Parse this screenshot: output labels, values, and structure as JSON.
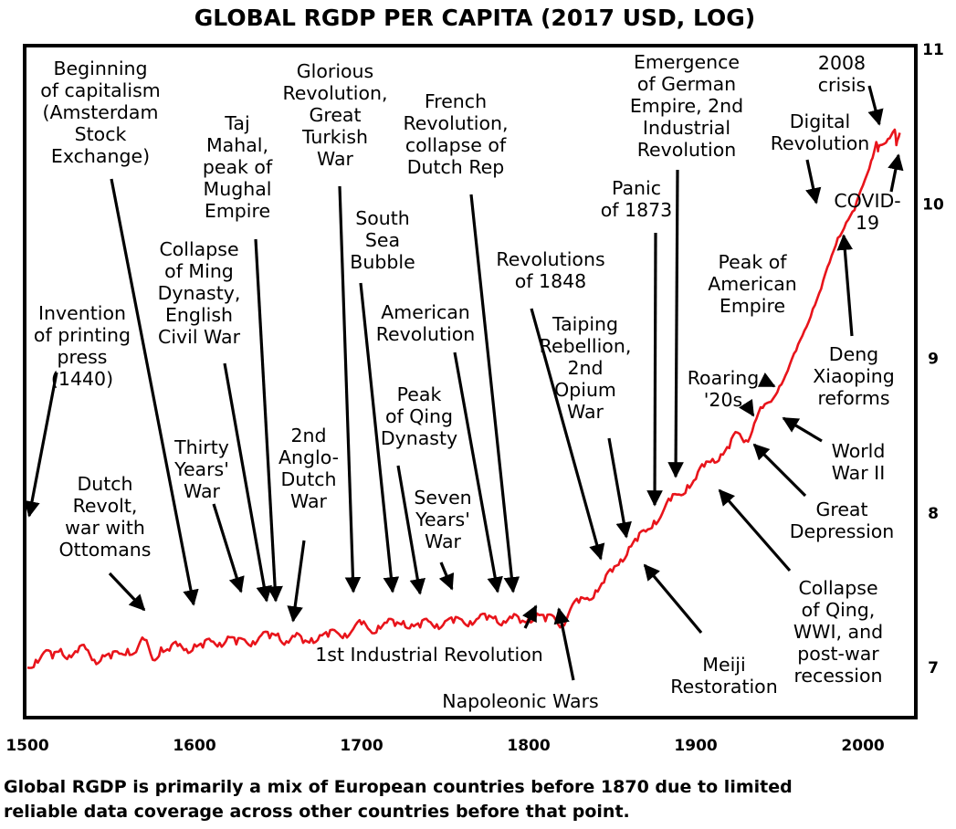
{
  "chart_data": {
    "type": "line",
    "title": "GLOBAL RGDP PER CAPITA (2017 USD, LOG)",
    "xlim": [
      1500,
      2030
    ],
    "ylim": [
      6.7,
      11.0
    ],
    "x_ticks": [
      1500,
      1600,
      1700,
      1800,
      1900,
      2000
    ],
    "y_ticks": [
      7,
      8,
      9,
      10,
      11
    ],
    "grid": false,
    "series": [
      {
        "name": "Global RGDP per capita (log)",
        "color": "#e8141b",
        "x": [
          1500,
          1505,
          1510,
          1515,
          1520,
          1525,
          1530,
          1535,
          1540,
          1545,
          1550,
          1555,
          1560,
          1565,
          1570,
          1575,
          1580,
          1585,
          1590,
          1595,
          1600,
          1605,
          1610,
          1615,
          1620,
          1625,
          1630,
          1635,
          1640,
          1645,
          1650,
          1655,
          1660,
          1665,
          1670,
          1675,
          1680,
          1685,
          1690,
          1695,
          1700,
          1705,
          1710,
          1715,
          1720,
          1725,
          1730,
          1735,
          1740,
          1745,
          1750,
          1755,
          1760,
          1765,
          1770,
          1775,
          1780,
          1785,
          1790,
          1795,
          1800,
          1805,
          1810,
          1815,
          1820,
          1825,
          1830,
          1835,
          1840,
          1845,
          1850,
          1855,
          1860,
          1865,
          1870,
          1875,
          1880,
          1885,
          1890,
          1895,
          1900,
          1905,
          1910,
          1915,
          1920,
          1925,
          1930,
          1935,
          1940,
          1945,
          1950,
          1955,
          1960,
          1965,
          1970,
          1975,
          1980,
          1985,
          1990,
          1995,
          2000,
          2005,
          2008,
          2009,
          2010,
          2015,
          2019,
          2020,
          2022
        ],
        "values": [
          7.0,
          7.05,
          7.1,
          7.06,
          7.12,
          7.08,
          7.1,
          7.12,
          7.05,
          7.08,
          7.06,
          7.09,
          7.12,
          7.1,
          7.18,
          7.05,
          7.13,
          7.11,
          7.14,
          7.12,
          7.15,
          7.13,
          7.17,
          7.16,
          7.2,
          7.15,
          7.18,
          7.17,
          7.21,
          7.19,
          7.22,
          7.17,
          7.2,
          7.16,
          7.19,
          7.21,
          7.2,
          7.23,
          7.22,
          7.25,
          7.28,
          7.24,
          7.27,
          7.29,
          7.27,
          7.3,
          7.28,
          7.26,
          7.3,
          7.28,
          7.3,
          7.29,
          7.31,
          7.3,
          7.32,
          7.31,
          7.33,
          7.3,
          7.32,
          7.29,
          7.32,
          7.35,
          7.3,
          7.33,
          7.28,
          7.38,
          7.42,
          7.45,
          7.5,
          7.55,
          7.62,
          7.7,
          7.78,
          7.82,
          7.88,
          7.95,
          8.0,
          8.08,
          8.12,
          8.18,
          8.22,
          8.3,
          8.35,
          8.38,
          8.42,
          8.52,
          8.47,
          8.58,
          8.68,
          8.72,
          8.82,
          8.92,
          9.05,
          9.18,
          9.32,
          9.45,
          9.62,
          9.78,
          9.88,
          9.96,
          10.12,
          10.28,
          10.4,
          10.34,
          10.38,
          10.42,
          10.48,
          10.38,
          10.46
        ]
      }
    ],
    "annotations": [
      {
        "text": "Invention of printing press (1440)",
        "lines": [
          "Invention",
          "of printing",
          "press",
          "(1440)"
        ],
        "points_to_year": 1500
      },
      {
        "text": "Beginning of capitalism (Amsterdam Stock Exchange)",
        "lines": [
          "Beginning",
          "of capitalism",
          "(Amsterdam",
          "Stock",
          "Exchange)"
        ],
        "points_to_year": 1602
      },
      {
        "text": "Dutch Revolt, war with Ottomans",
        "lines": [
          "Dutch",
          "Revolt,",
          "war with",
          "Ottomans"
        ],
        "points_to_year": 1568
      },
      {
        "text": "Collapse of Ming Dynasty, English Civil War",
        "lines": [
          "Collapse",
          "of Ming",
          "Dynasty,",
          "English",
          "Civil War"
        ],
        "points_to_year": 1644
      },
      {
        "text": "Taj Mahal, peak of Mughal Empire",
        "lines": [
          "Taj",
          "Mahal,",
          "peak of",
          "Mughal",
          "Empire"
        ],
        "points_to_year": 1648
      },
      {
        "text": "Thirty Years' War",
        "lines": [
          "Thirty",
          "Years'",
          "War"
        ],
        "points_to_year": 1630
      },
      {
        "text": "2nd Anglo-Dutch War",
        "lines": [
          "2nd",
          "Anglo-",
          "Dutch",
          "War"
        ],
        "points_to_year": 1665
      },
      {
        "text": "Glorious Revolution, Great Turkish War",
        "lines": [
          "Glorious",
          "Revolution,",
          "Great",
          "Turkish",
          "War"
        ],
        "points_to_year": 1688
      },
      {
        "text": "South Sea Bubble",
        "lines": [
          "South",
          "Sea",
          "Bubble"
        ],
        "points_to_year": 1720
      },
      {
        "text": "French Revolution, collapse of Dutch Rep",
        "lines": [
          "French",
          "Revolution,",
          "collapse of",
          "Dutch Rep"
        ],
        "points_to_year": 1795
      },
      {
        "text": "American Revolution",
        "lines": [
          "American",
          "Revolution"
        ],
        "points_to_year": 1776
      },
      {
        "text": "Peak of Qing Dynasty",
        "lines": [
          "Peak",
          "of Qing",
          "Dynasty"
        ],
        "points_to_year": 1735
      },
      {
        "text": "Seven Years' War",
        "lines": [
          "Seven",
          "Years'",
          "War"
        ],
        "points_to_year": 1756
      },
      {
        "text": "1st Industrial Revolution",
        "lines": [
          "1st Industrial Revolution"
        ],
        "points_to_year": 1805
      },
      {
        "text": "Napoleonic Wars",
        "lines": [
          "Napoleonic Wars"
        ],
        "points_to_year": 1815
      },
      {
        "text": "Revolutions of 1848",
        "lines": [
          "Revolutions",
          "of 1848"
        ],
        "points_to_year": 1848
      },
      {
        "text": "Taiping Rebellion, 2nd Opium War",
        "lines": [
          "Taiping",
          "Rebellion,",
          "2nd",
          "Opium",
          "War"
        ],
        "points_to_year": 1855
      },
      {
        "text": "Panic of 1873",
        "lines": [
          "Panic",
          "of 1873"
        ],
        "points_to_year": 1873
      },
      {
        "text": "Emergence of German Empire, 2nd Industrial Revolution",
        "lines": [
          "Emergence",
          "of German",
          "Empire, 2nd",
          "Industrial",
          "Revolution"
        ],
        "points_to_year": 1885
      },
      {
        "text": "Meiji Restoration",
        "lines": [
          "Meiji",
          "Restoration"
        ],
        "points_to_year": 1868
      },
      {
        "text": "Roaring '20s",
        "lines": [
          "Roaring",
          "'20s"
        ],
        "points_to_year": 1925
      },
      {
        "text": "Peak of American Empire",
        "lines": [
          "Peak of",
          "American",
          "Empire"
        ],
        "points_to_year": 1946
      },
      {
        "text": "Collapse of Qing, WWI, and post-war recession",
        "lines": [
          "Collapse",
          "of Qing,",
          "WWI, and",
          "post-war",
          "recession"
        ],
        "points_to_year": 1912
      },
      {
        "text": "Great Depression",
        "lines": [
          "Great",
          "Depression"
        ],
        "points_to_year": 1932
      },
      {
        "text": "World War II",
        "lines": [
          "World",
          "War II"
        ],
        "points_to_year": 1945
      },
      {
        "text": "Deng Xiaoping reforms",
        "lines": [
          "Deng",
          "Xiaoping",
          "reforms"
        ],
        "points_to_year": 1978
      },
      {
        "text": "Digital Revolution",
        "lines": [
          "Digital",
          "Revolution"
        ],
        "points_to_year": 1975
      },
      {
        "text": "COVID-19",
        "lines": [
          "COVID-",
          "19"
        ],
        "points_to_year": 2020
      },
      {
        "text": "2008 crisis",
        "lines": [
          "2008",
          "crisis"
        ],
        "points_to_year": 2008
      }
    ],
    "footnote": "Global RGDP is primarily a mix of European countries before 1870 due to limited reliable data coverage across other countries before that point.",
    "footnote_lines": [
      "Global RGDP is primarily a mix of European countries before 1870 due to limited",
      "reliable data coverage across other countries before that point."
    ]
  }
}
